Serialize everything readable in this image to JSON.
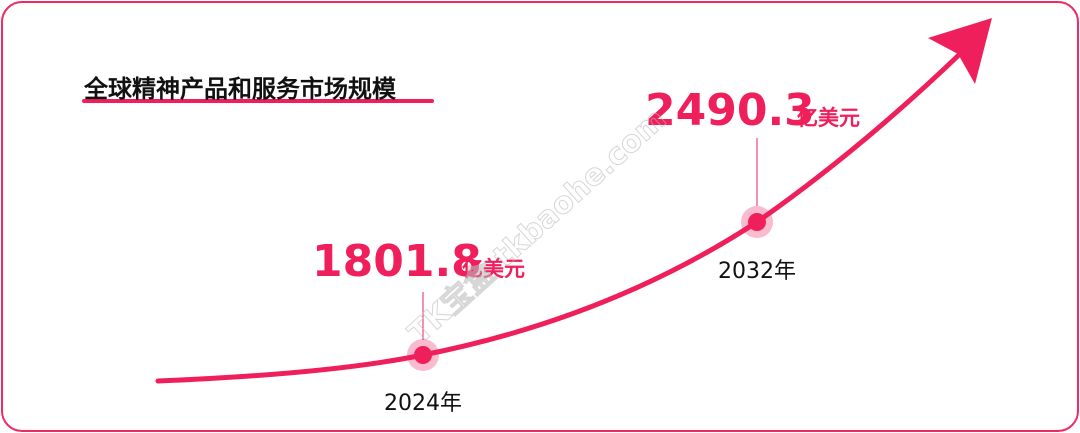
{
  "title": "全球精神产品和服务市场规模",
  "points": [
    {
      "value": 1801.8,
      "unit": "亿美元",
      "year": "2024年"
    },
    {
      "value": 2490.3,
      "unit": "亿美元",
      "year": "2032年"
    }
  ],
  "watermark": "TK宝盒 tkbaohe.com"
}
